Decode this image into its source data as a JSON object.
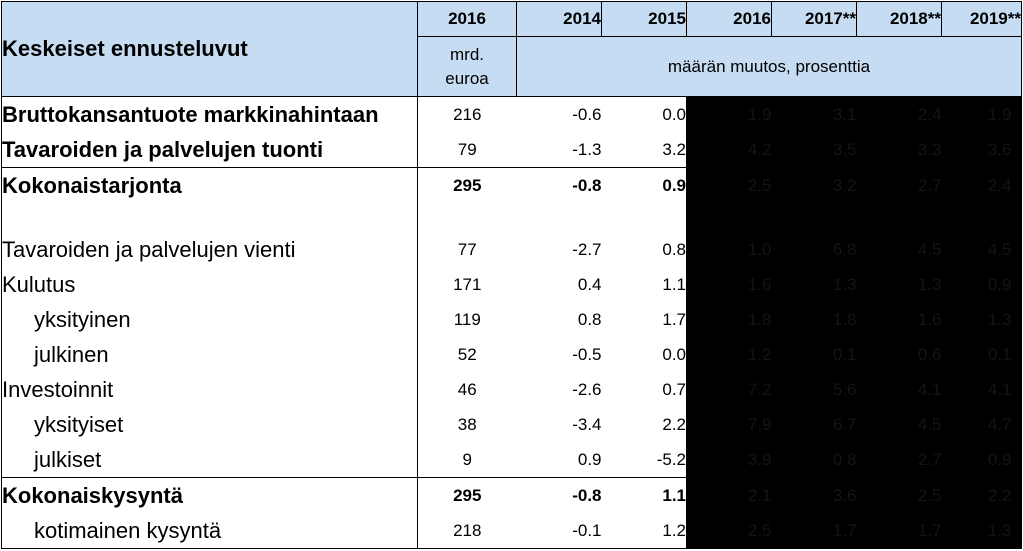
{
  "header": {
    "title": "Keskeiset ennusteluvut",
    "value_year": "2016",
    "years": [
      "2014",
      "2015",
      "2016",
      "2017**",
      "2018**",
      "2019**"
    ],
    "value_unit": "mrd. euroa",
    "change_unit": "määrän muutos, prosenttia"
  },
  "rows": [
    {
      "label": "Bruttokansantuote markkinahintaan",
      "value": "216",
      "c2014": "-0.6",
      "c2015": "0.0",
      "c2016": "1.9",
      "c2017": "3.1",
      "c2018": "2.4",
      "c2019": "1.9"
    },
    {
      "label": "Tavaroiden ja palvelujen tuonti",
      "value": "79",
      "c2014": "-1.3",
      "c2015": "3.2",
      "c2016": "4.2",
      "c2017": "3.5",
      "c2018": "3.3",
      "c2019": "3.6"
    },
    {
      "label": "Kokonaistarjonta",
      "value": "295",
      "c2014": "-0.8",
      "c2015": "0.9",
      "c2016": "2.5",
      "c2017": "3.2",
      "c2018": "2.7",
      "c2019": "2.4"
    },
    {
      "label": "Tavaroiden ja palvelujen vienti",
      "value": "77",
      "c2014": "-2.7",
      "c2015": "0.8",
      "c2016": "1.0",
      "c2017": "6.8",
      "c2018": "4.5",
      "c2019": "4.5"
    },
    {
      "label": "Kulutus",
      "value": "171",
      "c2014": "0.4",
      "c2015": "1.1",
      "c2016": "1.6",
      "c2017": "1.3",
      "c2018": "1.3",
      "c2019": "0.9"
    },
    {
      "label": "yksityinen",
      "value": "119",
      "c2014": "0.8",
      "c2015": "1.7",
      "c2016": "1.8",
      "c2017": "1.8",
      "c2018": "1.6",
      "c2019": "1.3"
    },
    {
      "label": "julkinen",
      "value": "52",
      "c2014": "-0.5",
      "c2015": "0.0",
      "c2016": "1.2",
      "c2017": "0.1",
      "c2018": "0.6",
      "c2019": "0.1"
    },
    {
      "label": "Investoinnit",
      "value": "46",
      "c2014": "-2.6",
      "c2015": "0.7",
      "c2016": "7.2",
      "c2017": "5.6",
      "c2018": "4.1",
      "c2019": "4.1"
    },
    {
      "label": "yksityiset",
      "value": "38",
      "c2014": "-3.4",
      "c2015": "2.2",
      "c2016": "7.9",
      "c2017": "6.7",
      "c2018": "4.5",
      "c2019": "4.7"
    },
    {
      "label": "julkiset",
      "value": "9",
      "c2014": "0.9",
      "c2015": "-5.2",
      "c2016": "3.9",
      "c2017": "0.8",
      "c2018": "2.7",
      "c2019": "0.9"
    },
    {
      "label": "Kokonaiskysyntä",
      "value": "295",
      "c2014": "-0.8",
      "c2015": "1.1",
      "c2016": "2.1",
      "c2017": "3.6",
      "c2018": "2.5",
      "c2019": "2.2"
    },
    {
      "label": "kotimainen kysyntä",
      "value": "218",
      "c2014": "-0.1",
      "c2015": "1.2",
      "c2016": "2.5",
      "c2017": "1.7",
      "c2018": "1.7",
      "c2019": "1.3"
    }
  ],
  "colors": {
    "header_bg": "#c6dcf2",
    "forecast_bg": "#000000",
    "border": "#000000"
  }
}
